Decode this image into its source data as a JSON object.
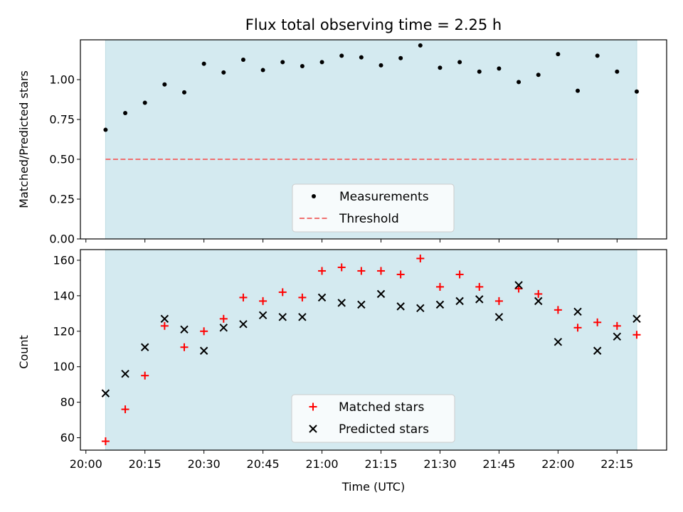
{
  "chart_data": [
    {
      "type": "scatter",
      "title": "Flux total observing time = 2.25 h",
      "xlabel": "",
      "ylabel": "Matched/Predicted stars",
      "ylim": [
        0,
        1.25
      ],
      "yticks": [
        "0.00",
        "0.25",
        "0.50",
        "0.75",
        "1.00"
      ],
      "threshold": 0.5,
      "legend_position": "lower center",
      "background_color": "#d4eaf0",
      "series": [
        {
          "name": "Measurements",
          "marker": "dot",
          "color": "#000000",
          "x": [
            "20:05",
            "20:10",
            "20:15",
            "20:20",
            "20:25",
            "20:30",
            "20:35",
            "20:40",
            "20:45",
            "20:50",
            "20:55",
            "21:00",
            "21:05",
            "21:10",
            "21:15",
            "21:20",
            "21:25",
            "21:30",
            "21:35",
            "21:40",
            "21:45",
            "21:50",
            "21:55",
            "22:00",
            "22:05",
            "22:10",
            "22:15",
            "22:20"
          ],
          "values": [
            0.685,
            0.79,
            0.855,
            0.97,
            0.92,
            1.1,
            1.045,
            1.125,
            1.06,
            1.11,
            1.085,
            1.11,
            1.15,
            1.14,
            1.09,
            1.135,
            1.215,
            1.075,
            1.11,
            1.05,
            1.07,
            0.985,
            1.03,
            1.16,
            0.93,
            1.15,
            1.05,
            0.925
          ]
        },
        {
          "name": "Threshold",
          "marker": "dashed-line",
          "color": "#f07070",
          "x": [
            "20:05",
            "22:20"
          ],
          "values": [
            0.5,
            0.5
          ]
        }
      ]
    },
    {
      "type": "scatter",
      "title": "",
      "xlabel": "Time (UTC)",
      "ylabel": "Count",
      "ylim": [
        53,
        166
      ],
      "yticks": [
        "60",
        "80",
        "100",
        "120",
        "140",
        "160"
      ],
      "xticks": [
        "20:00",
        "20:15",
        "20:30",
        "20:45",
        "21:00",
        "21:15",
        "21:30",
        "21:45",
        "22:00",
        "22:15"
      ],
      "legend_position": "lower center",
      "background_color": "#d4eaf0",
      "series": [
        {
          "name": "Matched stars",
          "marker": "plus",
          "color": "#ff0000",
          "x": [
            "20:05",
            "20:10",
            "20:15",
            "20:20",
            "20:25",
            "20:30",
            "20:35",
            "20:40",
            "20:45",
            "20:50",
            "20:55",
            "21:00",
            "21:05",
            "21:10",
            "21:15",
            "21:20",
            "21:25",
            "21:30",
            "21:35",
            "21:40",
            "21:45",
            "21:50",
            "21:55",
            "22:00",
            "22:05",
            "22:10",
            "22:15",
            "22:20"
          ],
          "values": [
            58,
            76,
            95,
            123,
            111,
            120,
            127,
            139,
            137,
            142,
            139,
            154,
            156,
            154,
            154,
            152,
            161,
            145,
            152,
            145,
            137,
            144,
            141,
            132,
            122,
            125,
            123,
            118
          ]
        },
        {
          "name": "Predicted stars",
          "marker": "x",
          "color": "#000000",
          "x": [
            "20:05",
            "20:10",
            "20:15",
            "20:20",
            "20:25",
            "20:30",
            "20:35",
            "20:40",
            "20:45",
            "20:50",
            "20:55",
            "21:00",
            "21:05",
            "21:10",
            "21:15",
            "21:20",
            "21:25",
            "21:30",
            "21:35",
            "21:40",
            "21:45",
            "21:50",
            "21:55",
            "22:00",
            "22:05",
            "22:10",
            "22:15",
            "22:20"
          ],
          "values": [
            85,
            96,
            111,
            127,
            121,
            109,
            122,
            124,
            129,
            128,
            128,
            139,
            136,
            135,
            141,
            134,
            133,
            135,
            137,
            138,
            128,
            146,
            137,
            114,
            131,
            109,
            117,
            127
          ]
        }
      ]
    }
  ]
}
